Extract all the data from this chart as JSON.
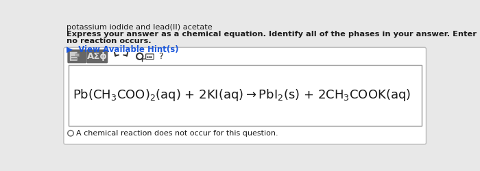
{
  "title_text": "potassium iodide and lead(II) acetate",
  "instruction_line1": "Express your answer as a chemical equation. Identify all of the phases in your answer. Enter NOREACTION if",
  "instruction_line2": "no reaction occurs.",
  "hint_text": "▶  View Available Hint(s)",
  "checkbox_text": "A chemical reaction does not occur for this question.",
  "bg_color": "#e8e8e8",
  "white": "#ffffff",
  "outer_border_color": "#bbbbbb",
  "eq_border_color": "#999999",
  "toolbar_btn_color": "#666666",
  "toolbar_btn_border": "#555555",
  "hint_color": "#1a56db",
  "text_color": "#1a1a1a",
  "arrow_color": "#333333",
  "icon_text_color": "#dddddd"
}
